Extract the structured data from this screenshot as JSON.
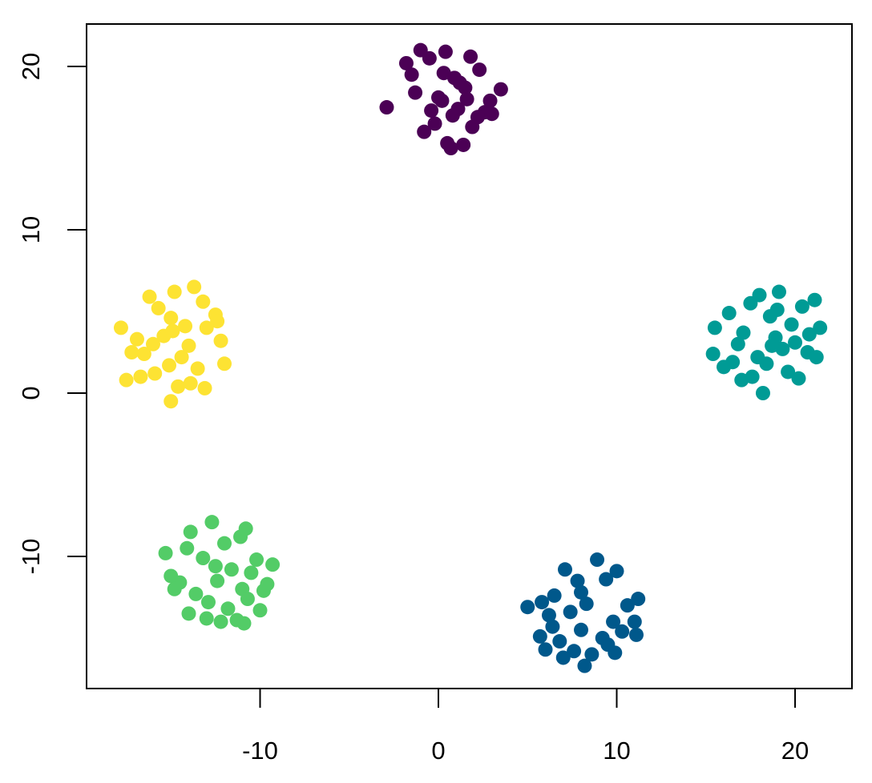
{
  "chart_data": {
    "type": "scatter",
    "xlim": [
      -19.73,
      23.19
    ],
    "ylim": [
      -18.09,
      22.6
    ],
    "xticks": [
      -10,
      0,
      10,
      20
    ],
    "yticks": [
      -10,
      0,
      10,
      20
    ],
    "grid": false,
    "series": [
      {
        "color": "#4B0055",
        "x": [
          -1.0,
          0.4,
          1.8,
          2.3,
          -0.5,
          0.9,
          1.5,
          -1.8,
          3.5,
          0.2,
          1.1,
          -0.2,
          2.6,
          -1.3,
          0.7,
          1.9,
          -0.8,
          0.5,
          2.9,
          -2.9,
          1.2,
          0.0,
          2.2,
          -1.5,
          0.8,
          1.6,
          -0.4,
          3.0,
          0.3,
          1.4
        ],
        "y": [
          21.0,
          20.9,
          20.6,
          19.8,
          20.5,
          19.3,
          18.7,
          20.2,
          18.6,
          17.9,
          17.4,
          16.5,
          17.2,
          18.4,
          15.0,
          16.3,
          16.0,
          15.3,
          17.9,
          17.5,
          19.0,
          18.1,
          16.9,
          19.5,
          17.0,
          18.0,
          17.3,
          17.1,
          19.6,
          15.2
        ]
      },
      {
        "color": "#00588B",
        "x": [
          8.9,
          7.1,
          10.0,
          6.5,
          11.2,
          5.0,
          7.8,
          9.4,
          5.8,
          8.3,
          10.6,
          6.2,
          7.4,
          9.8,
          11.0,
          5.7,
          8.0,
          9.2,
          6.8,
          10.3,
          6.0,
          7.6,
          8.6,
          9.5,
          11.1,
          7.0,
          8.2,
          9.9,
          6.4,
          8.0
        ],
        "y": [
          -10.2,
          -10.8,
          -10.9,
          -12.4,
          -12.6,
          -13.1,
          -11.5,
          -11.4,
          -12.8,
          -12.9,
          -13.0,
          -13.6,
          -13.4,
          -14.0,
          -14.0,
          -14.9,
          -14.5,
          -15.0,
          -15.2,
          -14.6,
          -15.7,
          -15.8,
          -16.0,
          -15.4,
          -14.8,
          -16.2,
          -16.7,
          -15.9,
          -14.3,
          -12.2
        ]
      },
      {
        "color": "#009B95",
        "x": [
          18.0,
          19.1,
          17.5,
          20.4,
          21.1,
          15.5,
          16.3,
          18.6,
          19.8,
          21.4,
          17.1,
          18.9,
          20.0,
          15.4,
          16.8,
          19.3,
          20.7,
          17.9,
          18.4,
          21.2,
          16.0,
          17.6,
          19.6,
          20.2,
          18.2,
          17.0,
          19.0,
          20.8,
          18.7,
          16.5
        ],
        "y": [
          6.0,
          6.2,
          5.5,
          5.3,
          5.7,
          4.0,
          4.9,
          4.7,
          4.2,
          4.0,
          3.7,
          3.4,
          3.1,
          2.4,
          3.0,
          2.7,
          2.5,
          2.2,
          1.8,
          2.2,
          1.6,
          1.0,
          1.3,
          0.9,
          0.0,
          0.8,
          5.1,
          3.6,
          2.9,
          1.9
        ]
      },
      {
        "color": "#53CC67",
        "x": [
          -12.7,
          -13.9,
          -11.1,
          -10.8,
          -15.3,
          -14.1,
          -12.0,
          -9.3,
          -10.2,
          -13.2,
          -15.0,
          -11.6,
          -10.5,
          -14.5,
          -12.4,
          -11.0,
          -13.6,
          -9.8,
          -12.9,
          -10.7,
          -14.0,
          -11.8,
          -13.0,
          -10.0,
          -12.2,
          -11.3,
          -14.8,
          -9.6,
          -12.5,
          -10.9
        ],
        "y": [
          -7.9,
          -8.5,
          -8.8,
          -8.3,
          -9.8,
          -9.5,
          -9.2,
          -10.5,
          -10.2,
          -10.1,
          -11.2,
          -10.8,
          -11.0,
          -11.6,
          -11.5,
          -12.0,
          -12.3,
          -12.1,
          -12.8,
          -12.6,
          -13.5,
          -13.2,
          -13.8,
          -13.3,
          -14.0,
          -13.9,
          -12.0,
          -11.7,
          -10.6,
          -14.1
        ]
      },
      {
        "color": "#FDE333",
        "x": [
          -16.2,
          -14.8,
          -13.7,
          -15.7,
          -13.2,
          -17.8,
          -15.0,
          -12.5,
          -16.9,
          -14.2,
          -13.0,
          -15.4,
          -17.2,
          -12.2,
          -14.0,
          -16.5,
          -15.1,
          -13.5,
          -17.5,
          -14.6,
          -12.0,
          -15.9,
          -13.9,
          -16.0,
          -14.4,
          -15.0,
          -13.1,
          -16.7,
          -14.9,
          -12.4
        ],
        "y": [
          5.9,
          6.2,
          6.5,
          5.2,
          5.6,
          4.0,
          4.6,
          4.8,
          3.3,
          4.1,
          4.0,
          3.5,
          2.5,
          3.2,
          2.9,
          2.4,
          1.7,
          1.5,
          0.8,
          0.4,
          1.8,
          1.2,
          0.6,
          3.0,
          2.2,
          -0.5,
          0.3,
          1.0,
          3.8,
          4.4
        ]
      }
    ]
  }
}
